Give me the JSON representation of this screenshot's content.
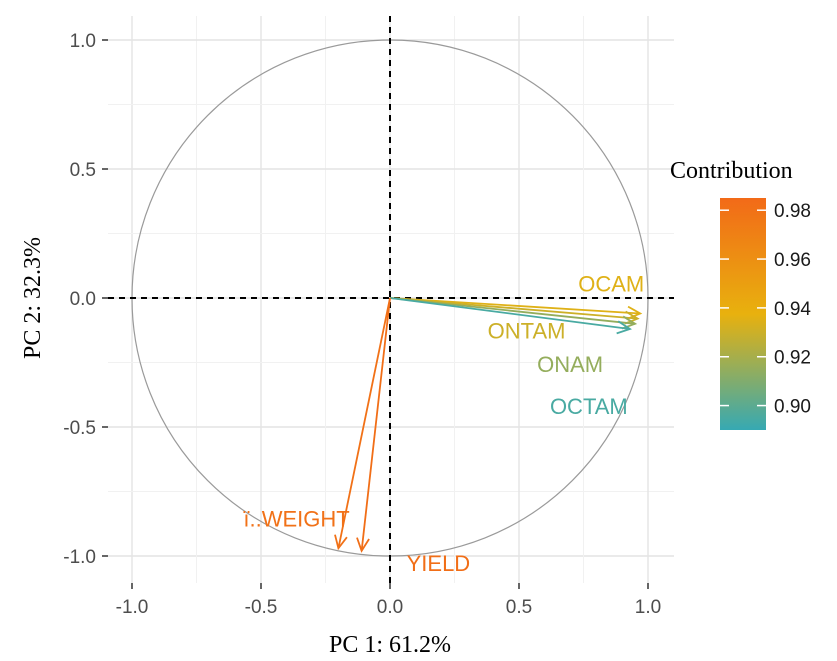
{
  "chart_data": {
    "type": "pca-variable-correlation-circle",
    "xlabel": "PC 1: 61.2%",
    "ylabel": "PC 2: 32.3%",
    "xlim": [
      -1.0,
      1.0
    ],
    "ylim": [
      -1.0,
      1.0
    ],
    "x_ticks": [
      "-1.0",
      "-0.5",
      "0.0",
      "0.5",
      "1.0"
    ],
    "y_ticks": [
      "1.0",
      "0.5",
      "0.0",
      "-0.5",
      "-1.0"
    ],
    "grid": true,
    "unit_circle": true,
    "reference_lines": [
      "x=0 dashed",
      "y=0 dashed"
    ],
    "variables": [
      {
        "name": "OCAM",
        "x": 0.97,
        "y": -0.06,
        "contribution": 0.935
      },
      {
        "name": "ONTAM",
        "x": 0.96,
        "y": -0.08,
        "contribution": 0.93
      },
      {
        "name": "ONAM",
        "x": 0.95,
        "y": -0.1,
        "contribution": 0.915
      },
      {
        "name": "OCTAM",
        "x": 0.93,
        "y": -0.12,
        "contribution": 0.895
      },
      {
        "name": "ï..WEIGHT",
        "x": -0.2,
        "y": -0.97,
        "contribution": 0.98
      },
      {
        "name": "YIELD",
        "x": -0.11,
        "y": -0.98,
        "contribution": 0.982
      }
    ],
    "legend": {
      "title": "Contribution",
      "position": "right",
      "min": 0.89,
      "max": 0.985,
      "ticks": [
        "0.98",
        "0.96",
        "0.94",
        "0.92",
        "0.90"
      ],
      "tick_values": [
        0.98,
        0.96,
        0.94,
        0.92,
        0.9
      ],
      "colors": [
        "#36a9b3",
        "#e8b10e",
        "#f26a18"
      ]
    }
  }
}
